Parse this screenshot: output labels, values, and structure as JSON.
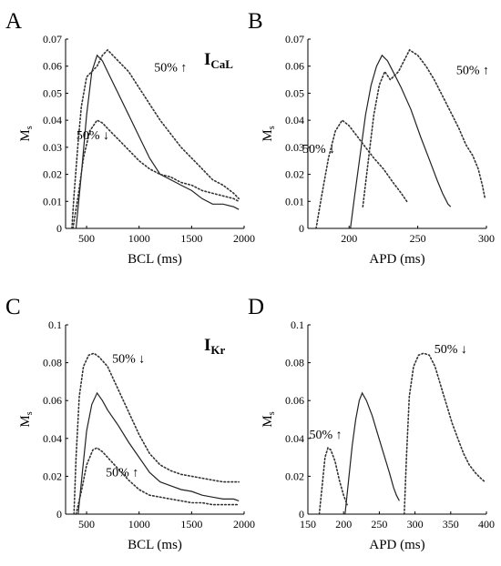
{
  "figure": {
    "panels": [
      {
        "id": "A",
        "label": "A",
        "xlabel": "BCL (ms)",
        "ylabel": "M",
        "ylabel_sub": "s",
        "current_main": "I",
        "current_sub": "CaL",
        "annotations": [
          {
            "text": "50% ↑",
            "x": 1300,
            "y": 0.058
          },
          {
            "text": "50% ↓",
            "x": 560,
            "y": 0.033
          }
        ]
      },
      {
        "id": "B",
        "label": "B",
        "xlabel": "APD (ms)",
        "ylabel": "M",
        "ylabel_sub": "s",
        "current_main": "",
        "current_sub": "",
        "annotations": [
          {
            "text": "50% ↑",
            "x": 290,
            "y": 0.057
          },
          {
            "text": "50% ↓",
            "x": 178,
            "y": 0.028
          }
        ]
      },
      {
        "id": "C",
        "label": "C",
        "xlabel": "BCL (ms)",
        "ylabel": "M",
        "ylabel_sub": "s",
        "current_main": "I",
        "current_sub": "Kr",
        "annotations": [
          {
            "text": "50% ↓",
            "x": 900,
            "y": 0.08
          },
          {
            "text": "50% ↑",
            "x": 840,
            "y": 0.02
          }
        ]
      },
      {
        "id": "D",
        "label": "D",
        "xlabel": "APD (ms)",
        "ylabel": "M",
        "ylabel_sub": "s",
        "current_main": "",
        "current_sub": "",
        "annotations": [
          {
            "text": "50% ↓",
            "x": 350,
            "y": 0.085
          },
          {
            "text": "50% ↑",
            "x": 175,
            "y": 0.04
          }
        ]
      }
    ]
  },
  "chart_data": [
    {
      "panel": "A",
      "type": "line",
      "xlabel": "BCL (ms)",
      "ylabel": "Ms",
      "xlim": [
        300,
        2000
      ],
      "ylim": [
        0,
        0.07
      ],
      "xticks": [
        500,
        1000,
        1500,
        2000
      ],
      "yticks": [
        0,
        0.01,
        0.02,
        0.03,
        0.04,
        0.05,
        0.06,
        0.07
      ],
      "series": [
        {
          "style": "solid",
          "points": [
            [
              400,
              0
            ],
            [
              450,
              0.02
            ],
            [
              500,
              0.042
            ],
            [
              550,
              0.058
            ],
            [
              600,
              0.064
            ],
            [
              650,
              0.062
            ],
            [
              700,
              0.058
            ],
            [
              800,
              0.05
            ],
            [
              900,
              0.042
            ],
            [
              1000,
              0.034
            ],
            [
              1100,
              0.026
            ],
            [
              1200,
              0.02
            ],
            [
              1300,
              0.018
            ],
            [
              1400,
              0.016
            ],
            [
              1500,
              0.014
            ],
            [
              1600,
              0.011
            ],
            [
              1700,
              0.009
            ],
            [
              1800,
              0.009
            ],
            [
              1900,
              0.008
            ],
            [
              1950,
              0.007
            ]
          ]
        },
        {
          "style": "dotted",
          "points": [
            [
              360,
              0
            ],
            [
              380,
              0.012
            ],
            [
              420,
              0.032
            ],
            [
              450,
              0.045
            ],
            [
              500,
              0.056
            ],
            [
              550,
              0.058
            ],
            [
              600,
              0.06
            ],
            [
              650,
              0.064
            ],
            [
              700,
              0.066
            ],
            [
              800,
              0.062
            ],
            [
              900,
              0.058
            ],
            [
              1000,
              0.052
            ],
            [
              1100,
              0.046
            ],
            [
              1200,
              0.04
            ],
            [
              1300,
              0.035
            ],
            [
              1400,
              0.03
            ],
            [
              1500,
              0.026
            ],
            [
              1600,
              0.022
            ],
            [
              1700,
              0.018
            ],
            [
              1800,
              0.016
            ],
            [
              1900,
              0.013
            ],
            [
              1950,
              0.011
            ]
          ]
        },
        {
          "style": "dotted",
          "points": [
            [
              370,
              0
            ],
            [
              420,
              0.012
            ],
            [
              470,
              0.026
            ],
            [
              530,
              0.036
            ],
            [
              600,
              0.04
            ],
            [
              650,
              0.039
            ],
            [
              700,
              0.037
            ],
            [
              800,
              0.033
            ],
            [
              900,
              0.029
            ],
            [
              1000,
              0.025
            ],
            [
              1100,
              0.022
            ],
            [
              1200,
              0.02
            ],
            [
              1300,
              0.019
            ],
            [
              1400,
              0.017
            ],
            [
              1500,
              0.016
            ],
            [
              1600,
              0.014
            ],
            [
              1700,
              0.013
            ],
            [
              1800,
              0.012
            ],
            [
              1900,
              0.011
            ],
            [
              1950,
              0.01
            ]
          ]
        }
      ]
    },
    {
      "panel": "B",
      "type": "line",
      "xlabel": "APD (ms)",
      "ylabel": "Ms",
      "xlim": [
        170,
        300
      ],
      "ylim": [
        0,
        0.07
      ],
      "xticks": [
        200,
        250,
        300
      ],
      "yticks": [
        0,
        0.01,
        0.02,
        0.03,
        0.04,
        0.05,
        0.06,
        0.07
      ],
      "series": [
        {
          "style": "solid",
          "points": [
            [
              201,
              0
            ],
            [
              204,
              0.012
            ],
            [
              208,
              0.027
            ],
            [
              212,
              0.042
            ],
            [
              216,
              0.053
            ],
            [
              220,
              0.06
            ],
            [
              224,
              0.064
            ],
            [
              228,
              0.062
            ],
            [
              232,
              0.058
            ],
            [
              238,
              0.052
            ],
            [
              245,
              0.044
            ],
            [
              252,
              0.034
            ],
            [
              258,
              0.026
            ],
            [
              264,
              0.018
            ],
            [
              268,
              0.013
            ],
            [
              272,
              0.009
            ],
            [
              274,
              0.008
            ]
          ]
        },
        {
          "style": "dotted",
          "points": [
            [
              210,
              0.008
            ],
            [
              214,
              0.025
            ],
            [
              218,
              0.042
            ],
            [
              222,
              0.053
            ],
            [
              226,
              0.058
            ],
            [
              230,
              0.055
            ],
            [
              236,
              0.058
            ],
            [
              240,
              0.062
            ],
            [
              244,
              0.066
            ],
            [
              250,
              0.064
            ],
            [
              256,
              0.06
            ],
            [
              262,
              0.055
            ],
            [
              268,
              0.049
            ],
            [
              274,
              0.043
            ],
            [
              280,
              0.037
            ],
            [
              285,
              0.031
            ],
            [
              290,
              0.027
            ],
            [
              294,
              0.022
            ],
            [
              297,
              0.016
            ],
            [
              299,
              0.011
            ]
          ]
        },
        {
          "style": "dotted",
          "points": [
            [
              176,
              0
            ],
            [
              180,
              0.012
            ],
            [
              185,
              0.026
            ],
            [
              190,
              0.036
            ],
            [
              195,
              0.04
            ],
            [
              200,
              0.038
            ],
            [
              206,
              0.034
            ],
            [
              212,
              0.03
            ],
            [
              218,
              0.026
            ],
            [
              225,
              0.022
            ],
            [
              232,
              0.017
            ],
            [
              238,
              0.013
            ],
            [
              242,
              0.01
            ]
          ]
        }
      ]
    },
    {
      "panel": "C",
      "type": "line",
      "xlabel": "BCL (ms)",
      "ylabel": "Ms",
      "xlim": [
        300,
        2000
      ],
      "ylim": [
        0,
        0.1
      ],
      "xticks": [
        500,
        1000,
        1500,
        2000
      ],
      "yticks": [
        0,
        0.02,
        0.04,
        0.06,
        0.08,
        0.1
      ],
      "series": [
        {
          "style": "solid",
          "points": [
            [
              420,
              0
            ],
            [
              460,
              0.022
            ],
            [
              500,
              0.044
            ],
            [
              550,
              0.058
            ],
            [
              600,
              0.064
            ],
            [
              650,
              0.06
            ],
            [
              700,
              0.055
            ],
            [
              800,
              0.047
            ],
            [
              900,
              0.038
            ],
            [
              1000,
              0.03
            ],
            [
              1100,
              0.022
            ],
            [
              1200,
              0.017
            ],
            [
              1300,
              0.015
            ],
            [
              1400,
              0.013
            ],
            [
              1500,
              0.012
            ],
            [
              1600,
              0.01
            ],
            [
              1700,
              0.009
            ],
            [
              1800,
              0.008
            ],
            [
              1900,
              0.008
            ],
            [
              1950,
              0.007
            ]
          ]
        },
        {
          "style": "dotted",
          "points": [
            [
              380,
              0
            ],
            [
              400,
              0.03
            ],
            [
              430,
              0.062
            ],
            [
              470,
              0.078
            ],
            [
              520,
              0.084
            ],
            [
              570,
              0.085
            ],
            [
              620,
              0.083
            ],
            [
              700,
              0.078
            ],
            [
              800,
              0.066
            ],
            [
              900,
              0.054
            ],
            [
              1000,
              0.042
            ],
            [
              1100,
              0.032
            ],
            [
              1200,
              0.026
            ],
            [
              1300,
              0.023
            ],
            [
              1400,
              0.021
            ],
            [
              1500,
              0.02
            ],
            [
              1600,
              0.019
            ],
            [
              1700,
              0.018
            ],
            [
              1800,
              0.017
            ],
            [
              1900,
              0.017
            ],
            [
              1950,
              0.017
            ]
          ]
        },
        {
          "style": "dotted",
          "points": [
            [
              400,
              0
            ],
            [
              450,
              0.012
            ],
            [
              500,
              0.026
            ],
            [
              560,
              0.034
            ],
            [
              600,
              0.035
            ],
            [
              650,
              0.033
            ],
            [
              700,
              0.03
            ],
            [
              800,
              0.024
            ],
            [
              900,
              0.018
            ],
            [
              1000,
              0.013
            ],
            [
              1100,
              0.01
            ],
            [
              1200,
              0.009
            ],
            [
              1300,
              0.008
            ],
            [
              1400,
              0.007
            ],
            [
              1500,
              0.006
            ],
            [
              1600,
              0.006
            ],
            [
              1700,
              0.005
            ],
            [
              1800,
              0.005
            ],
            [
              1900,
              0.005
            ],
            [
              1950,
              0.005
            ]
          ]
        }
      ]
    },
    {
      "panel": "D",
      "type": "line",
      "xlabel": "APD (ms)",
      "ylabel": "Ms",
      "xlim": [
        150,
        400
      ],
      "ylim": [
        0,
        0.1
      ],
      "xticks": [
        150,
        200,
        250,
        300,
        350,
        400
      ],
      "yticks": [
        0,
        0.02,
        0.04,
        0.06,
        0.08,
        0.1
      ],
      "series": [
        {
          "style": "solid",
          "points": [
            [
              202,
              0
            ],
            [
              207,
              0.018
            ],
            [
              212,
              0.036
            ],
            [
              217,
              0.05
            ],
            [
              222,
              0.06
            ],
            [
              226,
              0.064
            ],
            [
              232,
              0.06
            ],
            [
              240,
              0.052
            ],
            [
              248,
              0.042
            ],
            [
              256,
              0.032
            ],
            [
              264,
              0.022
            ],
            [
              270,
              0.014
            ],
            [
              274,
              0.01
            ],
            [
              278,
              0.007
            ]
          ]
        },
        {
          "style": "dotted",
          "points": [
            [
              166,
              0
            ],
            [
              170,
              0.015
            ],
            [
              174,
              0.03
            ],
            [
              178,
              0.035
            ],
            [
              182,
              0.034
            ],
            [
              188,
              0.028
            ],
            [
              194,
              0.018
            ],
            [
              200,
              0.01
            ],
            [
              205,
              0.005
            ]
          ]
        },
        {
          "style": "dotted",
          "points": [
            [
              285,
              0
            ],
            [
              288,
              0.03
            ],
            [
              292,
              0.062
            ],
            [
              298,
              0.078
            ],
            [
              305,
              0.084
            ],
            [
              312,
              0.085
            ],
            [
              320,
              0.084
            ],
            [
              328,
              0.078
            ],
            [
              336,
              0.068
            ],
            [
              344,
              0.058
            ],
            [
              352,
              0.048
            ],
            [
              360,
              0.04
            ],
            [
              368,
              0.032
            ],
            [
              376,
              0.026
            ],
            [
              384,
              0.022
            ],
            [
              392,
              0.019
            ],
            [
              398,
              0.017
            ]
          ]
        }
      ]
    }
  ]
}
